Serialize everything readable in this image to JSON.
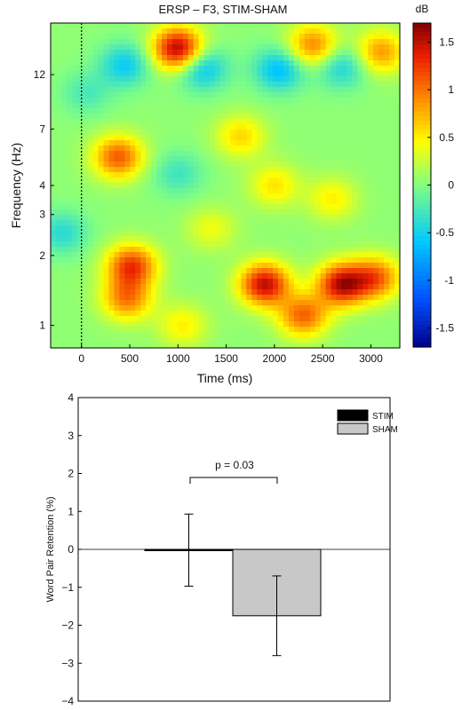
{
  "chart_data": [
    {
      "type": "heatmap",
      "title": "ERSP – F3, STIM-SHAM",
      "xlabel": "Time (ms)",
      "ylabel": "Frequency (Hz)",
      "x_range": [
        -320,
        3300
      ],
      "y_range_hz": [
        0.8,
        20
      ],
      "y_scale": "log",
      "x_ticks": [
        "0",
        "500",
        "1000",
        "1500",
        "2000",
        "2500",
        "3000"
      ],
      "y_ticks": [
        "1",
        "2",
        "3",
        "4",
        "7",
        "12"
      ],
      "colorbar": {
        "label": "dB",
        "range": [
          -1.7,
          1.7
        ],
        "ticks": [
          "-1.5",
          "-1",
          "-0.5",
          "0",
          "0.5",
          "1",
          "1.5"
        ]
      },
      "stimulus_onset_ms": 0,
      "baseline_db": 0.05,
      "blobs": [
        {
          "time_ms": 380,
          "freq_hz": 5.3,
          "value_db": 1.05
        },
        {
          "time_ms": 520,
          "freq_hz": 1.8,
          "value_db": 1.2
        },
        {
          "time_ms": 470,
          "freq_hz": 1.3,
          "value_db": 0.9
        },
        {
          "time_ms": 1000,
          "freq_hz": 15.5,
          "value_db": 1.55
        },
        {
          "time_ms": 1900,
          "freq_hz": 1.5,
          "value_db": 1.45
        },
        {
          "time_ms": 2700,
          "freq_hz": 1.5,
          "value_db": 1.45
        },
        {
          "time_ms": 2300,
          "freq_hz": 1.1,
          "value_db": 1.0
        },
        {
          "time_ms": 3050,
          "freq_hz": 1.6,
          "value_db": 1.0
        },
        {
          "time_ms": 1650,
          "freq_hz": 6.5,
          "value_db": 0.55
        },
        {
          "time_ms": 2000,
          "freq_hz": 4.0,
          "value_db": 0.5
        },
        {
          "time_ms": 2600,
          "freq_hz": 3.5,
          "value_db": 0.45
        },
        {
          "time_ms": 2400,
          "freq_hz": 16.0,
          "value_db": 0.9
        },
        {
          "time_ms": 3100,
          "freq_hz": 15.0,
          "value_db": 0.8
        },
        {
          "time_ms": -200,
          "freq_hz": 2.5,
          "value_db": -0.45
        },
        {
          "time_ms": 50,
          "freq_hz": 10.0,
          "value_db": -0.3
        },
        {
          "time_ms": 450,
          "freq_hz": 13.2,
          "value_db": -0.6
        },
        {
          "time_ms": 1250,
          "freq_hz": 12.8,
          "value_db": -0.7
        },
        {
          "time_ms": 2050,
          "freq_hz": 12.6,
          "value_db": -0.7
        },
        {
          "time_ms": 2700,
          "freq_hz": 13.0,
          "value_db": -0.55
        },
        {
          "time_ms": 1000,
          "freq_hz": 4.5,
          "value_db": -0.35
        },
        {
          "time_ms": 1050,
          "freq_hz": 1.0,
          "value_db": 0.45
        },
        {
          "time_ms": 1350,
          "freq_hz": 2.6,
          "value_db": 0.35
        }
      ]
    },
    {
      "type": "bar",
      "ylabel": "Word Pair Retention (%)",
      "ylim": [
        -4,
        4
      ],
      "y_ticks": [
        "4",
        "3",
        "2",
        "1",
        "0",
        "−1",
        "−2",
        "−3",
        "−4"
      ],
      "legend_position": "top-right",
      "series": [
        {
          "name": "STIM",
          "value": -0.02,
          "error": 0.95,
          "color": "#000000"
        },
        {
          "name": "SHAM",
          "value": -1.75,
          "error": 1.05,
          "color": "#c8c8c8"
        }
      ],
      "annotation": "p = 0.03"
    }
  ]
}
